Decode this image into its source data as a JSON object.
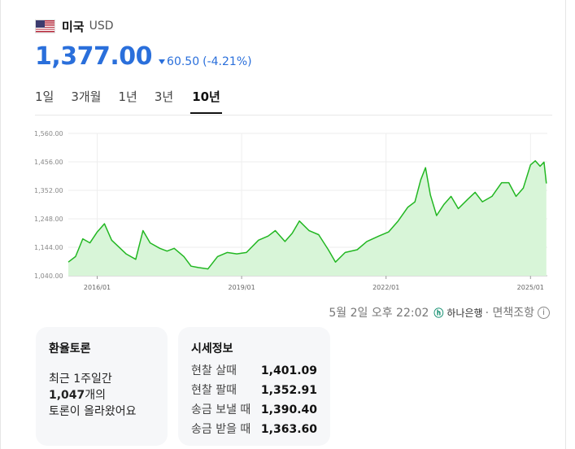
{
  "header": {
    "flag_icon": "us-flag-icon",
    "currency_name": "미국",
    "currency_code": "USD"
  },
  "price": {
    "value": "1,377.00",
    "change": "60.50",
    "change_pct": "(-4.21%)",
    "direction": "down",
    "color": "#2a6fdb"
  },
  "tabs": [
    {
      "label": "1일",
      "active": false
    },
    {
      "label": "3개월",
      "active": false
    },
    {
      "label": "1년",
      "active": false
    },
    {
      "label": "3년",
      "active": false
    },
    {
      "label": "10년",
      "active": true
    }
  ],
  "chart_data": {
    "type": "area",
    "x_ticks": [
      "2016/01",
      "2019/01",
      "2022/01",
      "2025/01"
    ],
    "y_ticks": [
      "1,560.00",
      "1,456.00",
      "1,352.00",
      "1,248.00",
      "1,144.00",
      "1,040.00"
    ],
    "ylim": [
      1040,
      1560
    ],
    "xlim": [
      2015.4,
      2025.35
    ],
    "grid": true,
    "line_color": "#22b722",
    "fill_color": "#d8f5d8",
    "series": [
      {
        "points": [
          [
            2015.4,
            1090
          ],
          [
            2015.55,
            1110
          ],
          [
            2015.7,
            1175
          ],
          [
            2015.85,
            1160
          ],
          [
            2016.0,
            1200
          ],
          [
            2016.15,
            1230
          ],
          [
            2016.3,
            1170
          ],
          [
            2016.45,
            1145
          ],
          [
            2016.6,
            1120
          ],
          [
            2016.8,
            1100
          ],
          [
            2016.95,
            1205
          ],
          [
            2017.1,
            1160
          ],
          [
            2017.3,
            1140
          ],
          [
            2017.45,
            1130
          ],
          [
            2017.6,
            1140
          ],
          [
            2017.8,
            1110
          ],
          [
            2017.95,
            1075
          ],
          [
            2018.1,
            1070
          ],
          [
            2018.3,
            1065
          ],
          [
            2018.5,
            1110
          ],
          [
            2018.7,
            1125
          ],
          [
            2018.9,
            1120
          ],
          [
            2019.1,
            1125
          ],
          [
            2019.35,
            1170
          ],
          [
            2019.55,
            1185
          ],
          [
            2019.7,
            1205
          ],
          [
            2019.9,
            1165
          ],
          [
            2020.05,
            1195
          ],
          [
            2020.2,
            1240
          ],
          [
            2020.4,
            1205
          ],
          [
            2020.6,
            1190
          ],
          [
            2020.8,
            1135
          ],
          [
            2020.95,
            1090
          ],
          [
            2021.15,
            1125
          ],
          [
            2021.4,
            1135
          ],
          [
            2021.6,
            1165
          ],
          [
            2021.85,
            1185
          ],
          [
            2022.05,
            1200
          ],
          [
            2022.25,
            1240
          ],
          [
            2022.45,
            1290
          ],
          [
            2022.6,
            1310
          ],
          [
            2022.72,
            1390
          ],
          [
            2022.82,
            1435
          ],
          [
            2022.92,
            1335
          ],
          [
            2023.05,
            1260
          ],
          [
            2023.2,
            1300
          ],
          [
            2023.35,
            1330
          ],
          [
            2023.5,
            1285
          ],
          [
            2023.7,
            1320
          ],
          [
            2023.85,
            1345
          ],
          [
            2024.0,
            1310
          ],
          [
            2024.2,
            1330
          ],
          [
            2024.4,
            1380
          ],
          [
            2024.55,
            1380
          ],
          [
            2024.7,
            1330
          ],
          [
            2024.85,
            1360
          ],
          [
            2025.0,
            1445
          ],
          [
            2025.1,
            1460
          ],
          [
            2025.2,
            1440
          ],
          [
            2025.28,
            1455
          ],
          [
            2025.33,
            1377
          ]
        ]
      }
    ]
  },
  "source": {
    "timestamp": "5월 2일 오후 22:02",
    "bank_mark": "ⓗ",
    "bank_name": "하나은행",
    "disclaimer": "· 면책조항",
    "info_icon": "info-circle-icon"
  },
  "discussion_card": {
    "title": "환율토론",
    "line1": "최근 1주일간",
    "count": "1,047",
    "count_suffix": "개의",
    "line3": "토론이 올라왔어요"
  },
  "rates_card": {
    "title": "시세정보",
    "rows": [
      {
        "label": "현찰 살때",
        "value": "1,401.09"
      },
      {
        "label": "현찰 팔때",
        "value": "1,352.91"
      },
      {
        "label": "송금 보낼 때",
        "value": "1,390.40"
      },
      {
        "label": "송금 받을 때",
        "value": "1,363.60"
      }
    ]
  }
}
